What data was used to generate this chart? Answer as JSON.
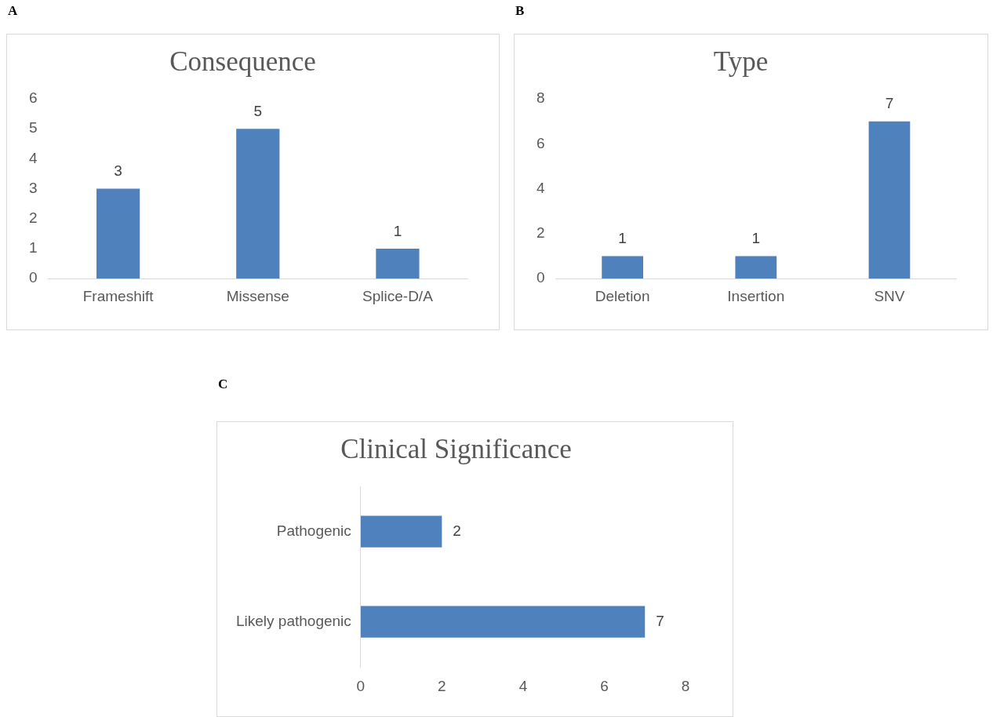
{
  "chart_data": [
    {
      "type": "bar",
      "title": "Consequence",
      "annotations": [
        "A"
      ],
      "categories": [
        "Frameshift",
        "Missense",
        "Splice-D/A"
      ],
      "values": [
        3,
        5,
        1
      ],
      "color": "#4f81bd",
      "ylim": [
        0,
        6
      ],
      "yticks": [
        0,
        1,
        2,
        3,
        4,
        5,
        6
      ],
      "data_labels": true
    },
    {
      "type": "bar",
      "title": "Type",
      "annotations": [
        "B"
      ],
      "categories": [
        "Deletion",
        "Insertion",
        "SNV"
      ],
      "values": [
        1,
        1,
        7
      ],
      "color": "#4f81bd",
      "ylim": [
        0,
        8
      ],
      "yticks": [
        0,
        2,
        4,
        6,
        8
      ],
      "data_labels": true
    },
    {
      "type": "bar",
      "orientation": "horizontal",
      "title": "Clinical Significance",
      "annotations": [
        "C"
      ],
      "categories": [
        "Pathogenic",
        "Likely pathogenic"
      ],
      "values": [
        2,
        7
      ],
      "color": "#4f81bd",
      "xlim": [
        0,
        8
      ],
      "xticks": [
        0,
        2,
        4,
        6,
        8
      ],
      "data_labels": true
    }
  ]
}
